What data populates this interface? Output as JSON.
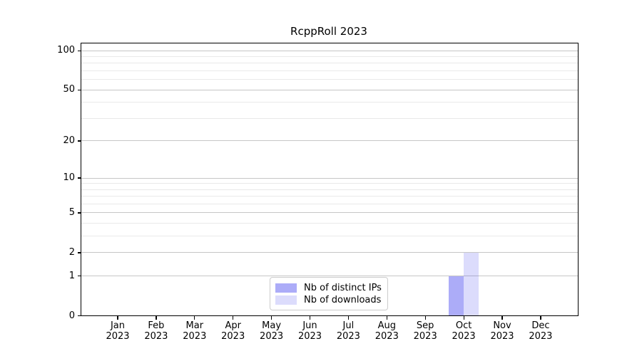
{
  "chart_data": {
    "type": "bar",
    "title": "RcppRoll 2023",
    "x_tick_year": "2023",
    "categories": [
      "Jan",
      "Feb",
      "Mar",
      "Apr",
      "May",
      "Jun",
      "Jul",
      "Aug",
      "Sep",
      "Oct",
      "Nov",
      "Dec"
    ],
    "series": [
      {
        "name": "Nb of distinct IPs",
        "color": "#4646f0",
        "opacity": 0.45,
        "rendered_hex": "#acacf4",
        "values": [
          0,
          0,
          0,
          0,
          0,
          0,
          0,
          0,
          0,
          1,
          0,
          0
        ]
      },
      {
        "name": "Nb of downloads",
        "color": "#4646f0",
        "opacity": 0.19,
        "rendered_hex": "#dcdcf6",
        "values": [
          0,
          0,
          0,
          0,
          0,
          0,
          0,
          0,
          0,
          2,
          0,
          0
        ]
      }
    ],
    "y_scale": "log1p",
    "ylim": [
      0,
      115
    ],
    "y_major_ticks": [
      0,
      1,
      2,
      5,
      10,
      20,
      50,
      100
    ],
    "y_minor_ticks": [
      3,
      4,
      6,
      7,
      8,
      9,
      30,
      40,
      60,
      70,
      80,
      90
    ],
    "grid": "horizontal, major and minor",
    "legend_position": "lower center"
  },
  "colors": {
    "major_grid": "#c6c6c6",
    "minor_grid": "#e9e9e9",
    "spine": "#000000",
    "text": "#000000",
    "legend_border": "#cccccc",
    "background": "#ffffff"
  }
}
